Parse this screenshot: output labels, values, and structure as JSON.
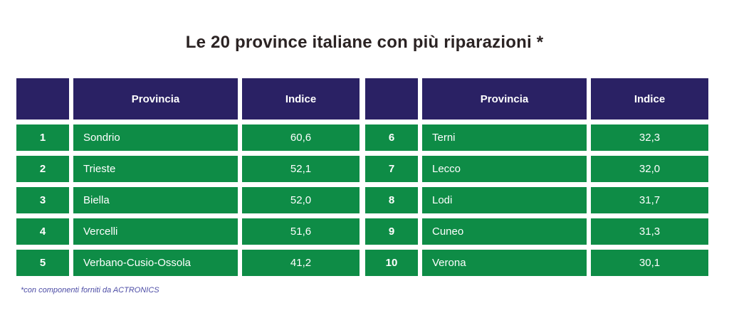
{
  "title": "Le 20 province italiane con più riparazioni *",
  "footnote": "*con componenti forniti da ACTRONICS",
  "colors": {
    "header_bg": "#2a2164",
    "row_bg": "#0e8c46",
    "cell_text": "#ffffff",
    "title_text": "#2b2323",
    "footnote_text": "#4d4da6",
    "page_bg": "#ffffff"
  },
  "chart_data": {
    "type": "table",
    "title": "Le 20 province italiane con più riparazioni *",
    "footnote": "*con componenti forniti da ACTRONICS",
    "tables": [
      {
        "columns": [
          "",
          "Provincia",
          "Indice"
        ],
        "rows": [
          [
            "1",
            "Sondrio",
            "60,6"
          ],
          [
            "2",
            "Trieste",
            "52,1"
          ],
          [
            "3",
            "Biella",
            "52,0"
          ],
          [
            "4",
            "Vercelli",
            "51,6"
          ],
          [
            "5",
            "Verbano-Cusio-Ossola",
            "41,2"
          ]
        ]
      },
      {
        "columns": [
          "",
          "Provincia",
          "Indice"
        ],
        "rows": [
          [
            "6",
            "Terni",
            "32,3"
          ],
          [
            "7",
            "Lecco",
            "32,0"
          ],
          [
            "8",
            "Lodi",
            "31,7"
          ],
          [
            "9",
            "Cuneo",
            "31,3"
          ],
          [
            "10",
            "Verona",
            "30,1"
          ]
        ]
      }
    ]
  }
}
